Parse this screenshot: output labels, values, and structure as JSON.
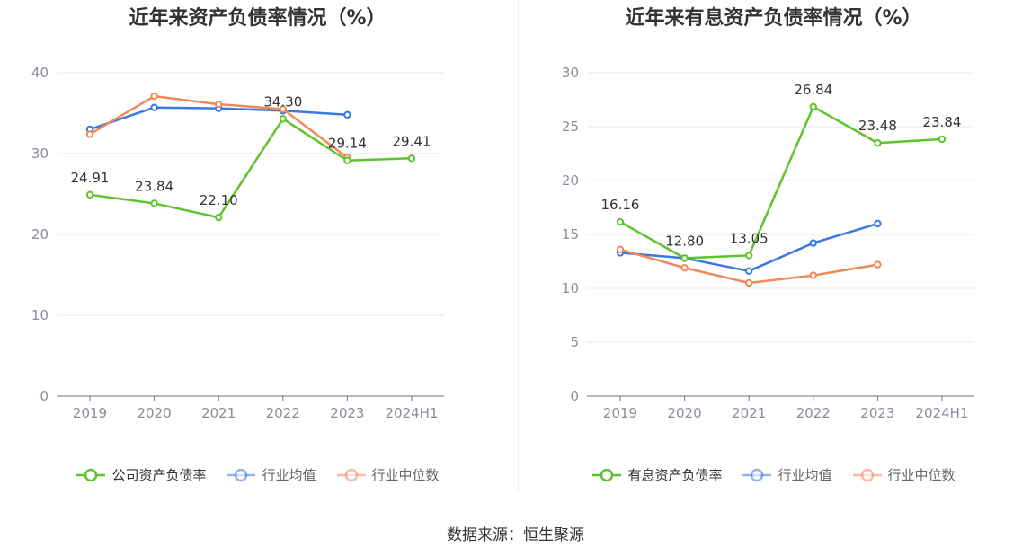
{
  "source": "数据来源：恒生聚源",
  "chart_data": [
    {
      "type": "line",
      "title": "近年来资产负债率情况（%）",
      "categories": [
        "2019",
        "2020",
        "2021",
        "2022",
        "2023",
        "2024H1"
      ],
      "ylim": [
        0,
        40
      ],
      "yticks": [
        0,
        10,
        20,
        30,
        40
      ],
      "series": [
        {
          "name": "公司资产负债率",
          "color": "#5ec42e",
          "values": [
            24.91,
            23.84,
            22.1,
            34.3,
            29.14,
            29.41
          ],
          "labels": [
            "24.91",
            "23.84",
            "22.10",
            "34.30",
            "29.14",
            "29.41"
          ]
        },
        {
          "name": "行业均值",
          "color": "#3b78e0",
          "values": [
            33.0,
            35.7,
            35.6,
            35.3,
            34.8,
            null
          ]
        },
        {
          "name": "行业中位数",
          "color": "#f0885a",
          "values": [
            32.4,
            37.1,
            36.1,
            35.5,
            29.5,
            null
          ]
        }
      ]
    },
    {
      "type": "line",
      "title": "近年来有息资产负债率情况（%）",
      "categories": [
        "2019",
        "2020",
        "2021",
        "2022",
        "2023",
        "2024H1"
      ],
      "ylim": [
        0,
        30
      ],
      "yticks": [
        0,
        5,
        10,
        15,
        20,
        25,
        30
      ],
      "series": [
        {
          "name": "有息资产负债率",
          "color": "#5ec42e",
          "values": [
            16.16,
            12.8,
            13.05,
            26.84,
            23.48,
            23.84
          ],
          "labels": [
            "16.16",
            "12.80",
            "13.05",
            "26.84",
            "23.48",
            "23.84"
          ]
        },
        {
          "name": "行业均值",
          "color": "#3b78e0",
          "values": [
            13.3,
            12.8,
            11.6,
            14.2,
            16.0,
            null
          ]
        },
        {
          "name": "行业中位数",
          "color": "#f0885a",
          "values": [
            13.6,
            11.9,
            10.5,
            11.2,
            12.2,
            null
          ]
        }
      ]
    }
  ]
}
